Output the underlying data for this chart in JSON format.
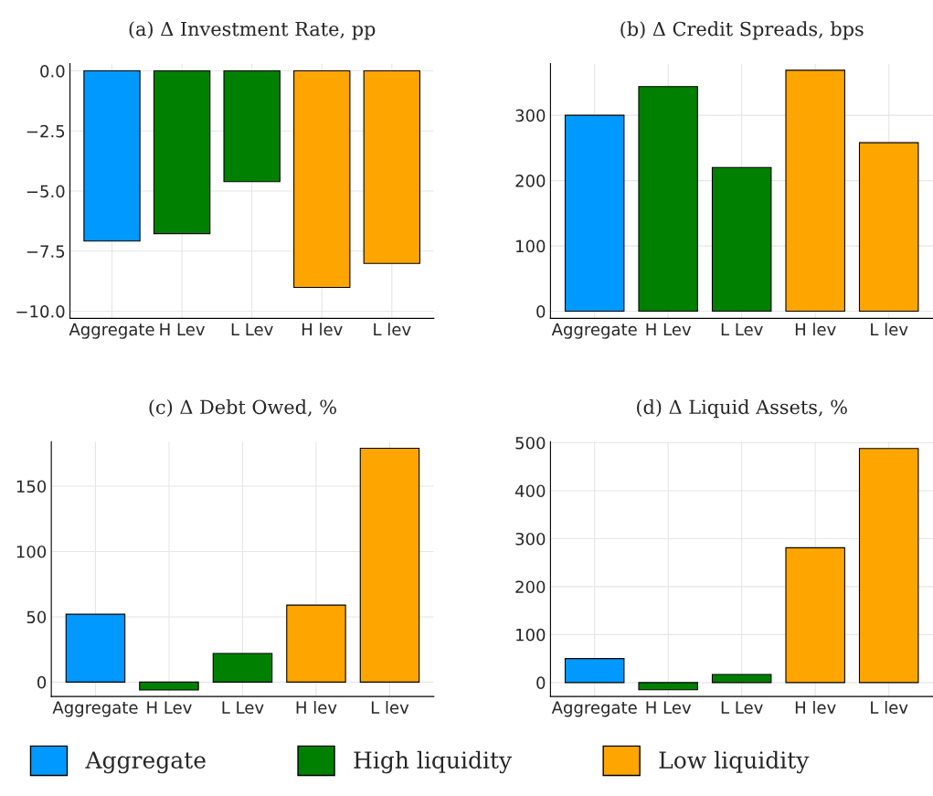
{
  "chart_data": [
    {
      "type": "bar",
      "title": "(a) Δ Investment Rate, pp",
      "categories": [
        "Aggregate",
        "H Lev",
        "L Lev",
        "H lev",
        "L lev"
      ],
      "series": [
        {
          "name": "Aggregate",
          "color": "#0099ff",
          "values": [
            -7.08,
            null,
            null,
            null,
            null
          ]
        },
        {
          "name": "High liquidity",
          "color": "#008000",
          "values": [
            null,
            -6.77,
            -4.61,
            null,
            null
          ]
        },
        {
          "name": "Low liquidity",
          "color": "#ffa500",
          "values": [
            null,
            null,
            null,
            -9.01,
            -8.01
          ]
        }
      ],
      "ylim": [
        -10.3,
        0.3
      ],
      "yticks": [
        {
          "value": 0,
          "label": "0.0"
        },
        {
          "value": -2.5,
          "label": "−2.5"
        },
        {
          "value": -5,
          "label": "−5.0"
        },
        {
          "value": -7.5,
          "label": "−7.5"
        },
        {
          "value": -10,
          "label": "−10.0"
        }
      ],
      "grid": true,
      "legend": "bottom"
    },
    {
      "type": "bar",
      "title": "(b) Δ Credit Spreads, bps",
      "categories": [
        "Aggregate",
        "H Lev",
        "L Lev",
        "H lev",
        "L lev"
      ],
      "series": [
        {
          "color": "#0099ff",
          "values": [
            300,
            null,
            null,
            null,
            null
          ]
        },
        {
          "color": "#008000",
          "values": [
            null,
            344,
            220,
            null,
            null
          ]
        },
        {
          "color": "#ffa500",
          "values": [
            null,
            null,
            null,
            369,
            258
          ]
        }
      ],
      "ylim": [
        -11,
        379
      ],
      "yticks": [
        0,
        100,
        200,
        300
      ],
      "grid": true
    },
    {
      "type": "bar",
      "title": "(c) Δ Debt Owed, %",
      "categories": [
        "Aggregate",
        "H Lev",
        "L Lev",
        "H lev",
        "L lev"
      ],
      "series": [
        {
          "color": "#0099ff",
          "values": [
            52,
            null,
            null,
            null,
            null
          ]
        },
        {
          "color": "#008000",
          "values": [
            null,
            -6,
            22,
            null,
            null
          ]
        },
        {
          "color": "#ffa500",
          "values": [
            null,
            null,
            null,
            59,
            179
          ]
        }
      ],
      "ylim": [
        -11,
        184
      ],
      "yticks": [
        0,
        50,
        100,
        150
      ],
      "grid": true
    },
    {
      "type": "bar",
      "title": "(d) Δ Liquid Assets, %",
      "categories": [
        "Aggregate",
        "H Lev",
        "L Lev",
        "H lev",
        "L lev"
      ],
      "series": [
        {
          "color": "#0099ff",
          "values": [
            50,
            null,
            null,
            null,
            null
          ]
        },
        {
          "color": "#008000",
          "values": [
            null,
            -15,
            17,
            null,
            null
          ]
        },
        {
          "color": "#ffa500",
          "values": [
            null,
            null,
            null,
            281,
            488
          ]
        }
      ],
      "ylim": [
        -29,
        502
      ],
      "yticks": [
        0,
        100,
        200,
        300,
        400,
        500
      ],
      "grid": true
    }
  ]
}
